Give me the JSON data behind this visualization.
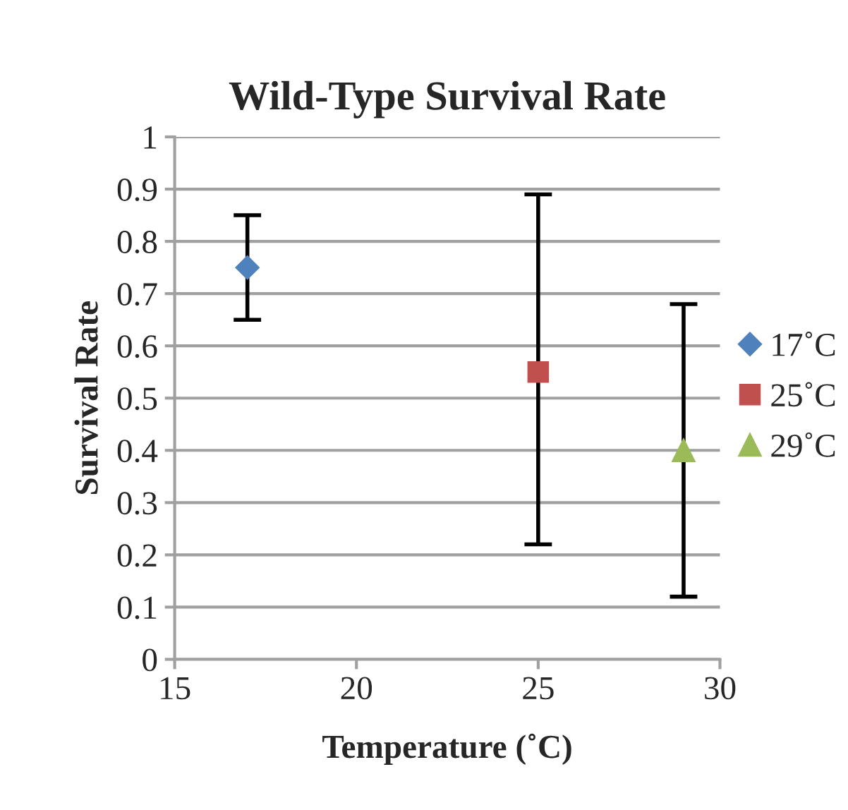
{
  "chart_data": {
    "type": "scatter",
    "title": "Wild-Type Survival Rate",
    "xlabel": "Temperature (˚C)",
    "ylabel": "Survival Rate",
    "series": [
      {
        "name": "17˚C",
        "color": "#4f81bd",
        "marker": "diamond",
        "x": [
          17
        ],
        "values": [
          0.75
        ],
        "errors": [
          [
            0.65,
            0.85
          ]
        ]
      },
      {
        "name": "25˚C",
        "color": "#c0504d",
        "marker": "square",
        "x": [
          25
        ],
        "values": [
          0.55
        ],
        "errors": [
          [
            0.22,
            0.89
          ]
        ]
      },
      {
        "name": "29˚C",
        "color": "#9bbb59",
        "marker": "triangle",
        "x": [
          29
        ],
        "values": [
          0.4
        ],
        "errors": [
          [
            0.12,
            0.68
          ]
        ]
      }
    ],
    "xlim": [
      15,
      30
    ],
    "xticks": [
      15,
      20,
      25,
      30
    ],
    "ylim": [
      0,
      1
    ],
    "yticks": [
      0,
      0.1,
      0.2,
      0.3,
      0.4,
      0.5,
      0.6,
      0.7,
      0.8,
      0.9,
      1
    ],
    "grid": "y",
    "legend": "right"
  }
}
